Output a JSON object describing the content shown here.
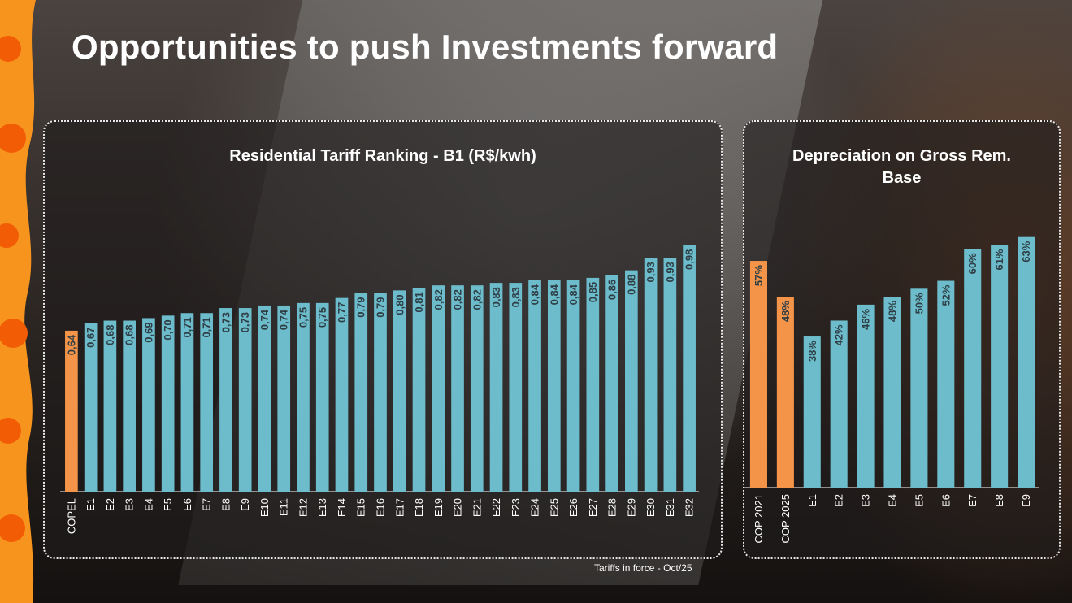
{
  "slide": {
    "title": "Opportunities to push Investments forward",
    "footnote": "Tariffs in force - Oct/25"
  },
  "colors": {
    "highlight": "#F39449",
    "bar": "#6CBCCB",
    "label": "#2F3E45",
    "brand_orange": "#F7941D"
  },
  "chart_data": [
    {
      "type": "bar",
      "title": "Residential Tariff Ranking - B1 (R$/kwh)",
      "categories": [
        "COPEL",
        "E1",
        "E2",
        "E3",
        "E4",
        "E5",
        "E6",
        "E7",
        "E8",
        "E9",
        "E10",
        "E11",
        "E12",
        "E13",
        "E14",
        "E15",
        "E16",
        "E17",
        "E18",
        "E19",
        "E20",
        "E21",
        "E22",
        "E23",
        "E24",
        "E25",
        "E26",
        "E27",
        "E28",
        "E29",
        "E30",
        "E31",
        "E32"
      ],
      "values": [
        0.64,
        0.67,
        0.68,
        0.68,
        0.69,
        0.7,
        0.71,
        0.71,
        0.73,
        0.73,
        0.74,
        0.74,
        0.75,
        0.75,
        0.77,
        0.79,
        0.79,
        0.8,
        0.81,
        0.82,
        0.82,
        0.82,
        0.83,
        0.83,
        0.84,
        0.84,
        0.84,
        0.85,
        0.86,
        0.88,
        0.93,
        0.93,
        0.98
      ],
      "labels": [
        "0,64",
        "0,67",
        "0,68",
        "0,68",
        "0,69",
        "0,70",
        "0,71",
        "0,71",
        "0,73",
        "0,73",
        "0,74",
        "0,74",
        "0,75",
        "0,75",
        "0,77",
        "0,79",
        "0,79",
        "0,80",
        "0,81",
        "0,82",
        "0,82",
        "0,82",
        "0,83",
        "0,83",
        "0,84",
        "0,84",
        "0,84",
        "0,85",
        "0,86",
        "0,88",
        "0,93",
        "0,93",
        "0,98"
      ],
      "highlight": [
        "COPEL"
      ],
      "ylim": [
        0,
        1.05
      ],
      "xlabel": "",
      "ylabel": ""
    },
    {
      "type": "bar",
      "title": "Depreciation on Gross Rem. Base",
      "categories": [
        "COP 2021",
        "COP 2025",
        "E1",
        "E2",
        "E3",
        "E4",
        "E5",
        "E6",
        "E7",
        "E8",
        "E9"
      ],
      "values": [
        57,
        48,
        38,
        42,
        46,
        48,
        50,
        52,
        60,
        61,
        63
      ],
      "labels": [
        "57%",
        "48%",
        "38%",
        "42%",
        "46%",
        "48%",
        "50%",
        "52%",
        "60%",
        "61%",
        "63%"
      ],
      "highlight": [
        "COP 2021",
        "COP 2025"
      ],
      "ylim": [
        0,
        66
      ],
      "xlabel": "",
      "ylabel": ""
    }
  ]
}
